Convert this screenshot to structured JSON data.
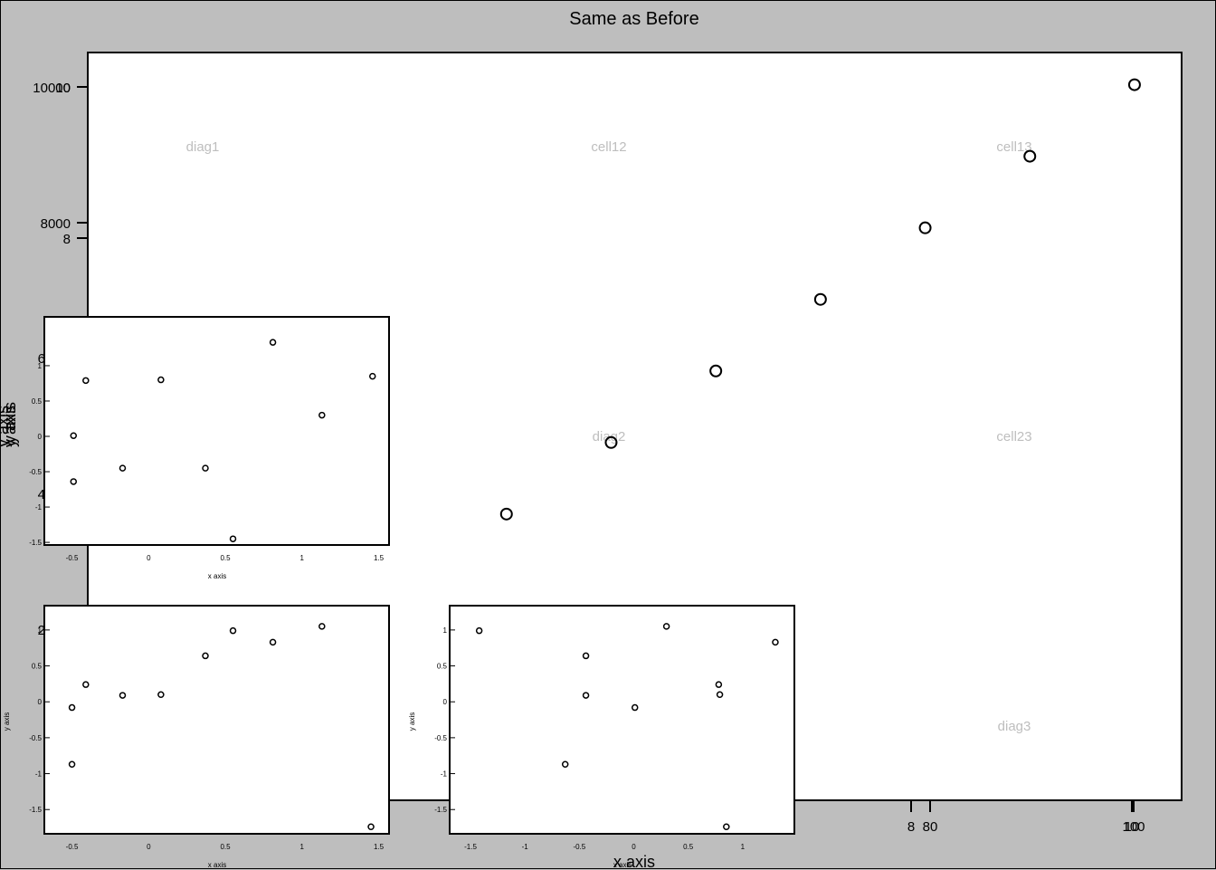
{
  "figure": {
    "title": "Same as Before",
    "background": "#bebebe"
  },
  "main": {
    "xlabel": "x axis",
    "ylabel": "y axis",
    "y_ticks_A": [
      "10000",
      "8000",
      "6",
      "4",
      "2"
    ],
    "y_ticks_B": [
      "10",
      "8"
    ],
    "x_ticks_A": [
      "8",
      "10"
    ],
    "x_ticks_B": [
      "80",
      "100"
    ],
    "cell_labels": [
      "diag1",
      "cell12",
      "cell13",
      "diag2",
      "cell23",
      "diag3"
    ],
    "cell_label_color": "#bebebe"
  },
  "chart_data": [
    {
      "type": "scatter",
      "name": "main",
      "x": [
        4,
        5,
        6,
        7,
        8,
        9,
        10
      ],
      "y": [
        4,
        5,
        6,
        7,
        8,
        9,
        10
      ],
      "xlim": [
        0,
        10.45
      ],
      "ylim": [
        0,
        10.45
      ],
      "marker": "open-circle",
      "grid": false
    },
    {
      "type": "scatter",
      "name": "inset-top",
      "x": [
        -0.49,
        -0.49,
        -0.41,
        -0.17,
        0.08,
        0.37,
        0.55,
        0.81,
        1.13,
        1.46
      ],
      "y": [
        -0.64,
        0.01,
        0.79,
        -0.45,
        0.8,
        -0.45,
        -1.45,
        1.33,
        0.3,
        0.85
      ],
      "xlim": [
        -0.58,
        1.55
      ],
      "ylim": [
        -1.55,
        1.55
      ],
      "x_ticks": [
        "-0.5",
        "0",
        "0.5",
        "1",
        "1.5"
      ],
      "y_ticks": [
        "-1.5",
        "-1",
        "-0.5",
        "0",
        "0.5",
        "1"
      ],
      "xlabel": "x axis",
      "ylabel": ""
    },
    {
      "type": "scatter",
      "name": "inset-bottom-left",
      "x": [
        -0.5,
        -0.5,
        -0.41,
        -0.17,
        0.08,
        0.37,
        0.55,
        0.81,
        1.13,
        1.45
      ],
      "y": [
        -0.87,
        -0.08,
        0.24,
        0.09,
        0.1,
        0.64,
        0.99,
        0.83,
        1.05,
        -1.74
      ],
      "xlim": [
        -0.58,
        1.55
      ],
      "ylim": [
        -1.85,
        1.2
      ],
      "x_ticks": [
        "-0.5",
        "0",
        "0.5",
        "1",
        "1.5"
      ],
      "y_ticks": [
        "-1.5",
        "-1",
        "-0.5",
        "0",
        "0.5",
        "1"
      ],
      "xlabel": "x axis",
      "ylabel": "y axis"
    },
    {
      "type": "scatter",
      "name": "inset-bottom-right",
      "x": [
        -1.42,
        -0.63,
        -0.44,
        -0.44,
        0.01,
        0.3,
        0.78,
        0.79,
        0.85,
        1.3
      ],
      "y": [
        0.99,
        -0.87,
        0.64,
        0.09,
        -0.08,
        1.05,
        0.24,
        0.1,
        -1.74,
        0.83
      ],
      "xlim": [
        -1.55,
        1.45
      ],
      "ylim": [
        -1.85,
        1.2
      ],
      "x_ticks": [
        "-1.5",
        "-1",
        "-0.5",
        "0",
        "0.5",
        "1"
      ],
      "y_ticks": [
        "-1.5",
        "-1",
        "-0.5",
        "0",
        "0.5",
        "1"
      ],
      "xlabel": "x axis",
      "ylabel": "y axis"
    }
  ]
}
